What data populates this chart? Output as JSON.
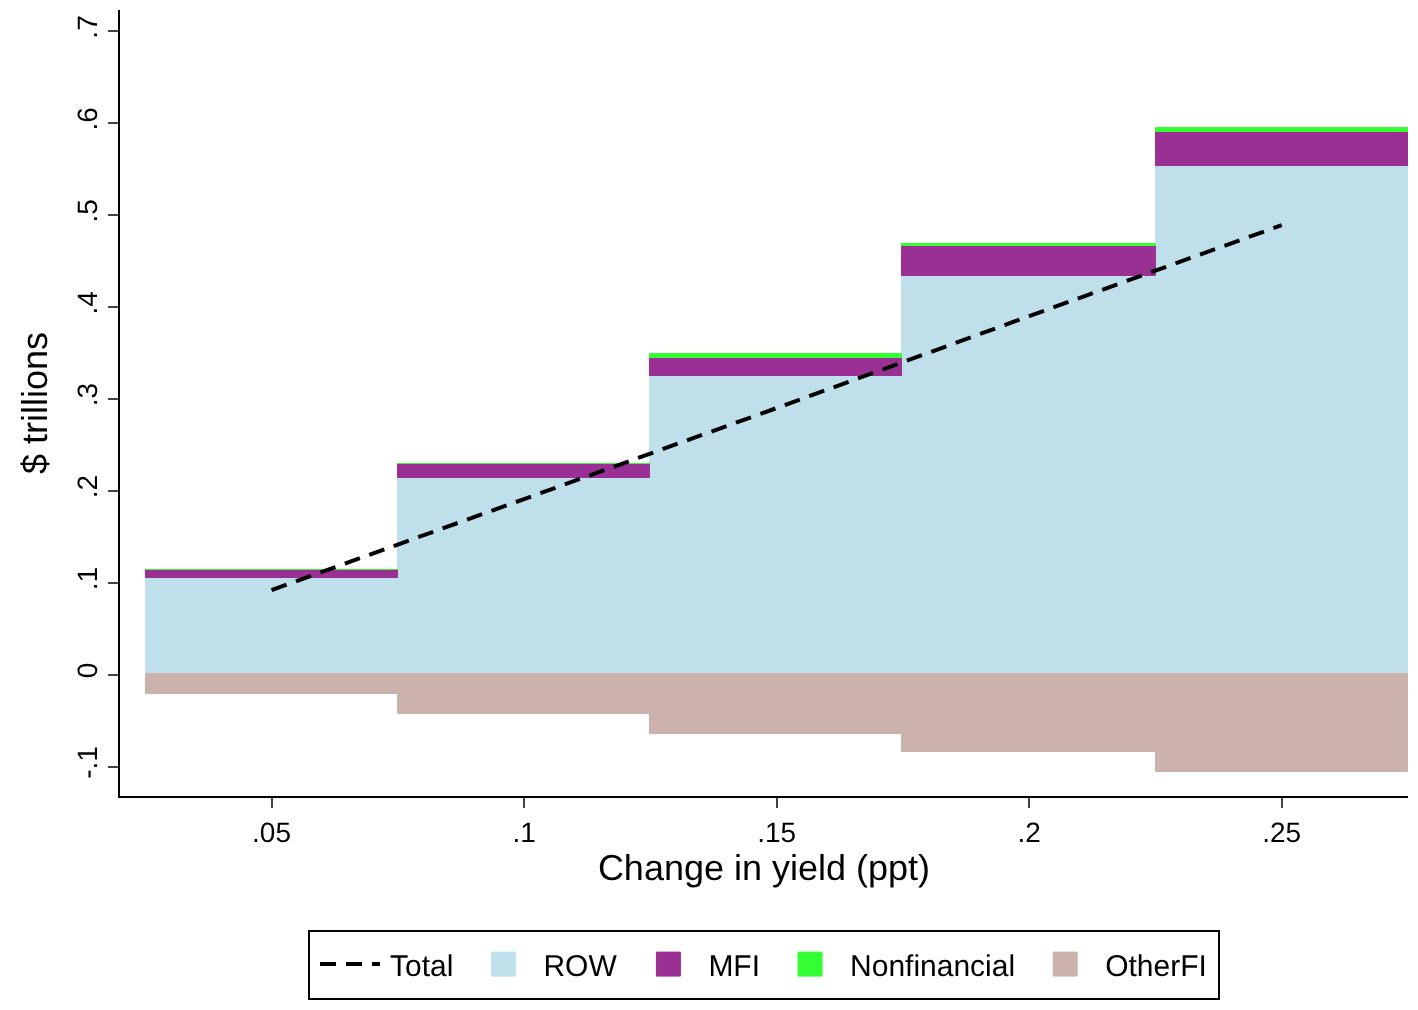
{
  "chart_data": {
    "type": "bar",
    "stacked": true,
    "xlabel": "Change in yield (ppt)",
    "ylabel": "$ trillions",
    "x": [
      0.05,
      0.1,
      0.15,
      0.2,
      0.25
    ],
    "series": [
      {
        "name": "Total",
        "type": "line",
        "line_style": "dashed",
        "color": "#000000",
        "values": [
          0.092,
          0.191,
          0.29,
          0.39,
          0.489
        ]
      },
      {
        "name": "ROW",
        "color": "#bfe0ea",
        "values": [
          0.106,
          0.213,
          0.324,
          0.434,
          0.553
        ]
      },
      {
        "name": "MFI",
        "color": "#9a2f94",
        "values": [
          0.007,
          0.017,
          0.021,
          0.033,
          0.038
        ]
      },
      {
        "name": "Nonfinancial",
        "color": "#33ff33",
        "values": [
          0,
          0,
          0.003,
          0.002,
          0.003
        ]
      },
      {
        "name": "OtherFI",
        "color": "#cbb2ad",
        "values": [
          -0.021,
          -0.043,
          -0.064,
          -0.085,
          -0.106
        ]
      }
    ],
    "xlim": [
      0.02,
      0.275
    ],
    "ylim": [
      -0.132,
      0.723
    ],
    "xticks": [
      {
        "value": 0.05,
        "label": ".05"
      },
      {
        "value": 0.1,
        "label": ".1"
      },
      {
        "value": 0.15,
        "label": ".15"
      },
      {
        "value": 0.2,
        "label": ".2"
      },
      {
        "value": 0.25,
        "label": ".25"
      }
    ],
    "yticks": [
      {
        "value": -0.1,
        "label": "-.1"
      },
      0,
      {
        "value": 0.1,
        "label": ".1"
      },
      {
        "value": 0.2,
        "label": ".2"
      },
      {
        "value": 0.3,
        "label": ".3"
      },
      {
        "value": 0.4,
        "label": ".4"
      },
      {
        "value": 0.5,
        "label": ".5"
      },
      {
        "value": 0.6,
        "label": ".6"
      },
      {
        "value": 0.7,
        "label": ".7"
      }
    ],
    "legend": "bottom"
  }
}
